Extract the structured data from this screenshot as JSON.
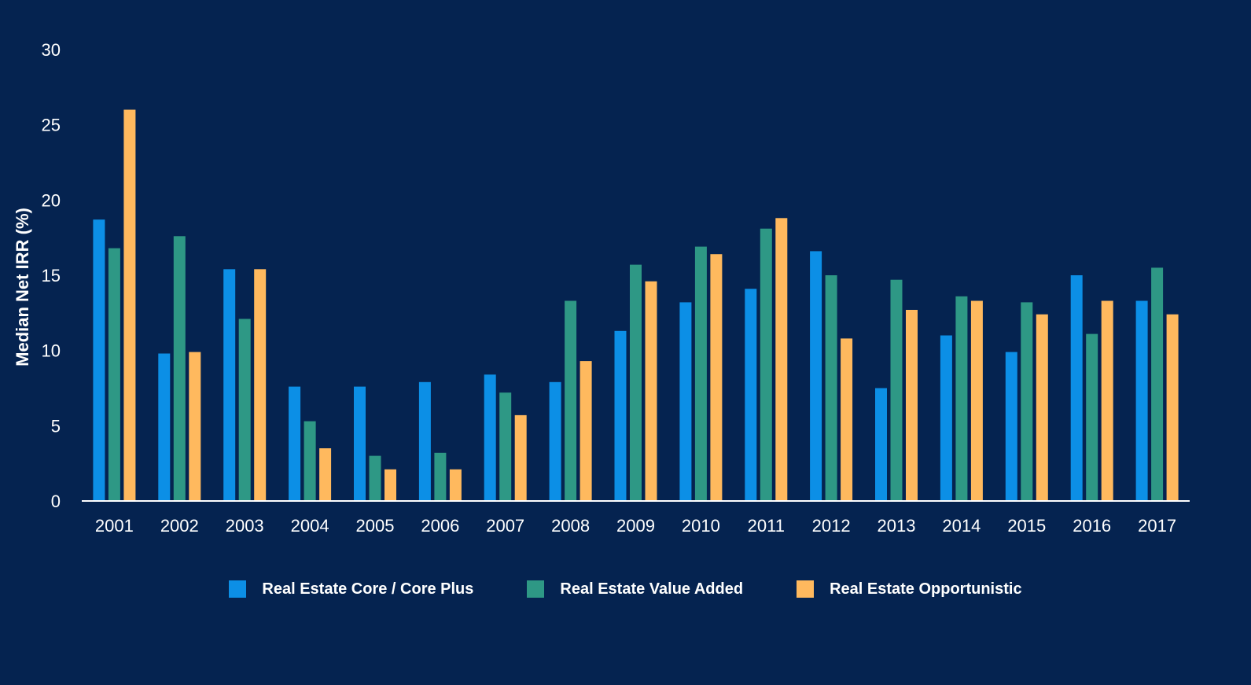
{
  "chart_data": {
    "type": "bar",
    "title": "",
    "xlabel": "",
    "ylabel": "Median Net IRR (%)",
    "ylim": [
      0,
      30
    ],
    "yticks": [
      "0",
      "5",
      "10",
      "15",
      "20",
      "25",
      "30"
    ],
    "grid": false,
    "legend_position": "bottom",
    "categories": [
      "2001",
      "2002",
      "2003",
      "2004",
      "2005",
      "2006",
      "2007",
      "2008",
      "2009",
      "2010",
      "2011",
      "2012",
      "2013",
      "2014",
      "2015",
      "2016",
      "2017"
    ],
    "series": [
      {
        "name": "Real Estate Core / Core Plus",
        "color": "#0C8FE6",
        "values": [
          18.7,
          9.8,
          15.4,
          7.6,
          7.6,
          7.9,
          8.4,
          7.9,
          11.3,
          13.2,
          14.1,
          16.6,
          7.5,
          11.0,
          9.9,
          15.0,
          13.3
        ]
      },
      {
        "name": "Real Estate Value Added",
        "color": "#2E9885",
        "values": [
          16.8,
          17.6,
          12.1,
          5.3,
          3.0,
          3.2,
          7.2,
          13.3,
          15.7,
          16.9,
          18.1,
          15.0,
          14.7,
          13.6,
          13.2,
          11.1,
          15.5
        ]
      },
      {
        "name": "Real Estate Opportunistic",
        "color": "#FFB95E",
        "values": [
          26.0,
          9.9,
          15.4,
          3.5,
          2.1,
          2.1,
          5.7,
          9.3,
          14.6,
          16.4,
          18.8,
          10.8,
          12.7,
          13.3,
          12.4,
          13.3,
          12.4
        ]
      }
    ]
  }
}
